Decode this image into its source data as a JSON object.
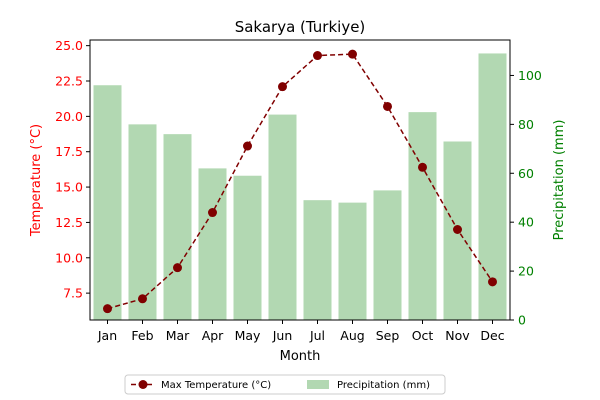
{
  "chart_data": {
    "type": "bar+line",
    "title": "Sakarya (Turkiye)",
    "xlabel": "Month",
    "ylabel_left": "Temperature (°C)",
    "ylabel_right": "Precipitation (mm)",
    "categories": [
      "Jan",
      "Feb",
      "Mar",
      "Apr",
      "May",
      "Jun",
      "Jul",
      "Aug",
      "Sep",
      "Oct",
      "Nov",
      "Dec"
    ],
    "left_ylim": [
      5.6,
      25.4
    ],
    "left_ticks": [
      "7.5",
      "10.0",
      "12.5",
      "15.0",
      "17.5",
      "20.0",
      "22.5",
      "25.0"
    ],
    "right_ylim": [
      0,
      114.5
    ],
    "right_ticks": [
      "0",
      "20",
      "40",
      "60",
      "80",
      "100"
    ],
    "grid": false,
    "legend_position": "bottom-center",
    "series": [
      {
        "name": "Max Temperature (°C)",
        "kind": "line",
        "axis": "left",
        "color": "#800000",
        "linestyle": "dashed",
        "marker": "circle",
        "values": [
          6.4,
          7.1,
          9.3,
          13.2,
          17.9,
          22.1,
          24.3,
          24.4,
          20.7,
          16.4,
          12.0,
          8.3
        ]
      },
      {
        "name": "Precipitation (mm)",
        "kind": "bar",
        "axis": "right",
        "color": "#b2d8b2",
        "values": [
          96,
          80,
          76,
          62,
          59,
          84,
          49,
          48,
          53,
          85,
          73,
          109
        ]
      }
    ],
    "left_axis_color": "#ff0000",
    "right_axis_color": "#008000"
  }
}
